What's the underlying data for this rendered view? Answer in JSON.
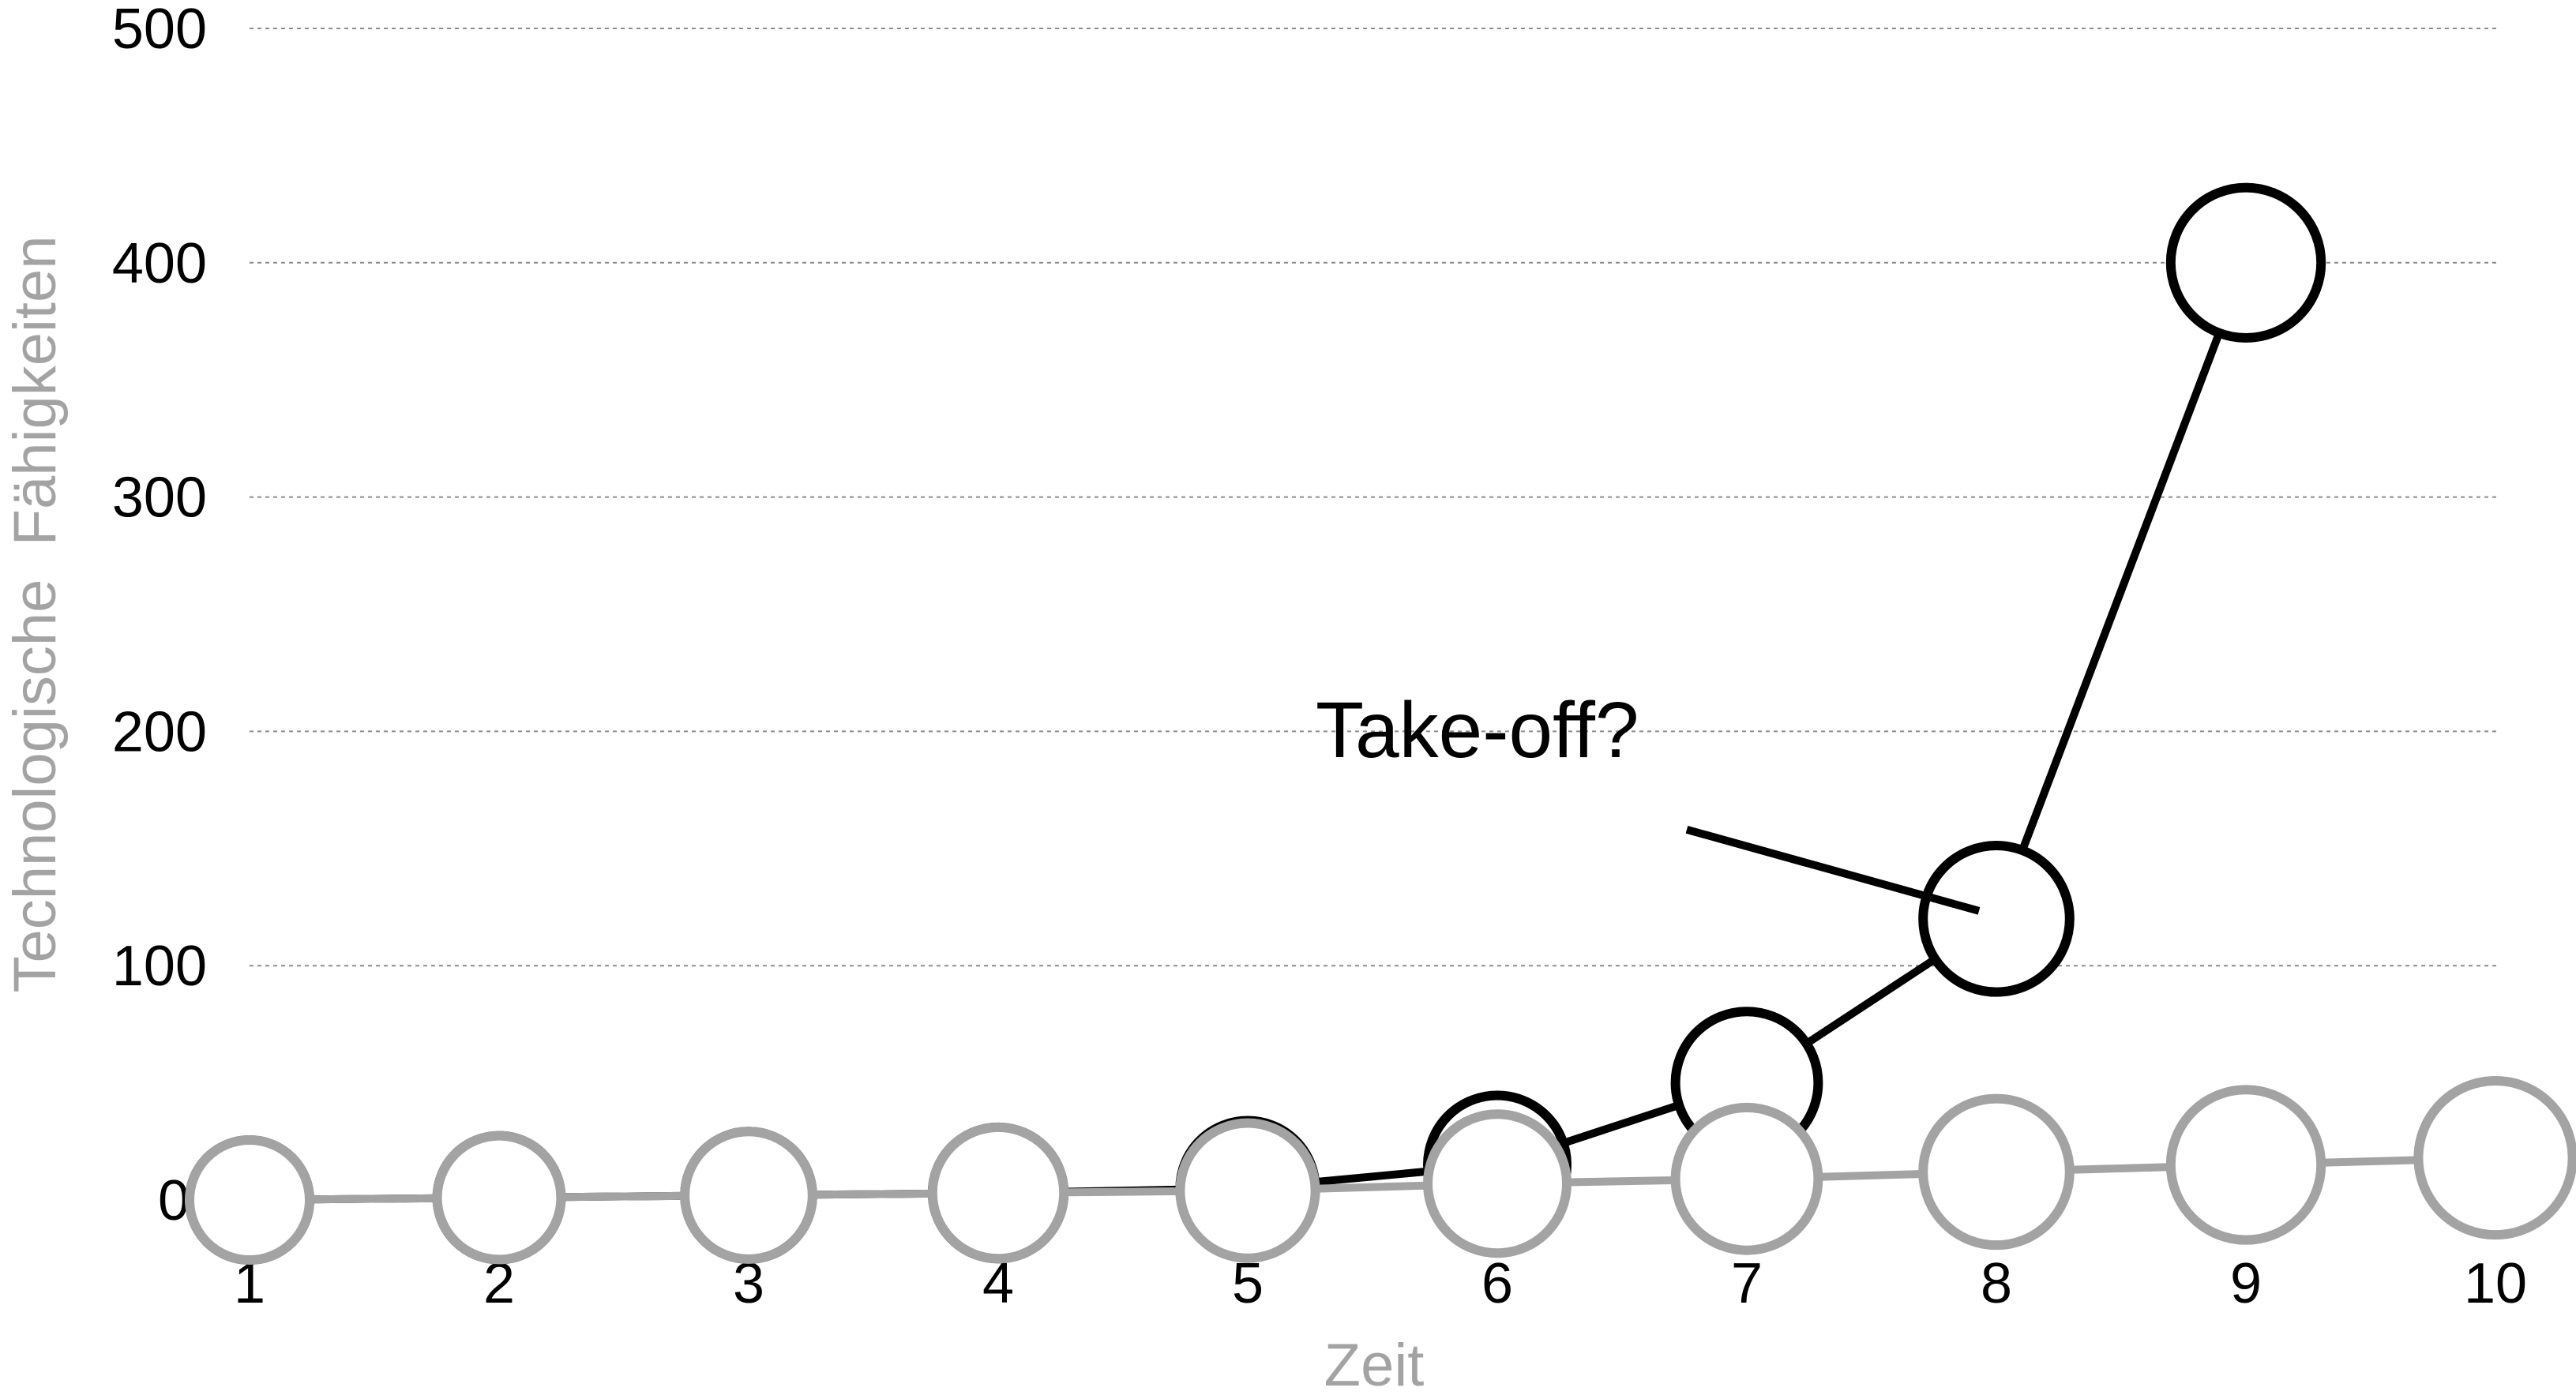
{
  "chart_data": {
    "type": "line",
    "title": "",
    "xlabel": "Zeit",
    "ylabel": "Technologische  Fähigkeiten",
    "x": [
      1,
      2,
      3,
      4,
      5,
      6,
      7,
      8,
      9,
      10
    ],
    "ylim": [
      0,
      500
    ],
    "yticks": [
      "0",
      "100",
      "200",
      "300",
      "400",
      "500"
    ],
    "grid": true,
    "series": [
      {
        "color": "#000000",
        "values": [
          0,
          1,
          2,
          3,
          5,
          15,
          50,
          120,
          400,
          null
        ]
      },
      {
        "color": "#a3a3a3",
        "values": [
          0,
          1,
          2,
          3,
          4,
          7,
          9,
          12,
          15,
          18
        ]
      }
    ],
    "annotation": {
      "text": "Take-off?",
      "x": 8,
      "y": 120
    }
  }
}
